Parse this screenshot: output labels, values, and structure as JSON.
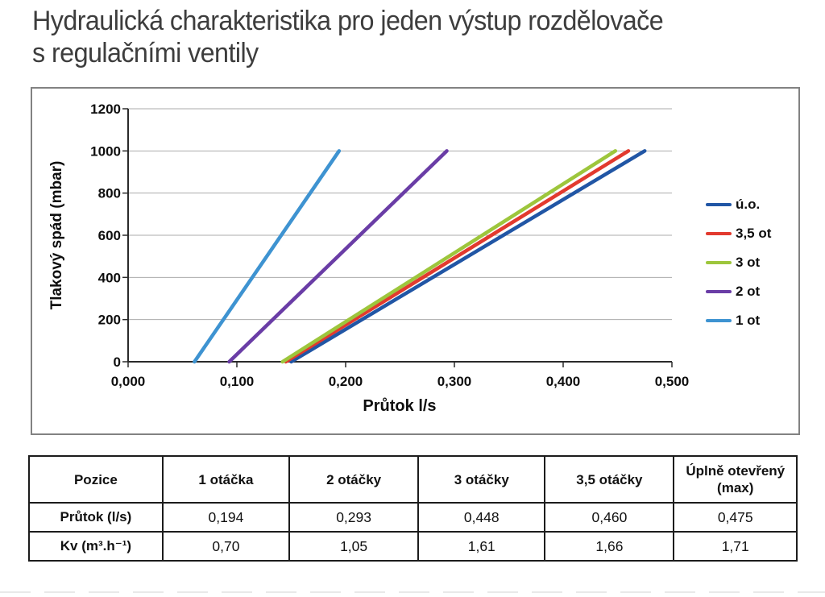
{
  "title": {
    "line1": "Hydraulická charakteristika pro jeden výstup rozdělovače",
    "line2": "s regulačními ventily"
  },
  "chart_data": {
    "type": "line",
    "title": "",
    "xlabel": "Průtok l/s",
    "ylabel": "Tlakový spád (mbar)",
    "xlim": [
      0,
      0.5
    ],
    "ylim": [
      0,
      1200
    ],
    "x_ticks": [
      0,
      0.1,
      0.2,
      0.3,
      0.4,
      0.5
    ],
    "x_tick_labels": [
      "0,000",
      "0,100",
      "0,200",
      "0,300",
      "0,400",
      "0,500"
    ],
    "y_ticks": [
      0,
      200,
      400,
      600,
      800,
      1000,
      1200
    ],
    "y_tick_labels": [
      "0",
      "200",
      "400",
      "600",
      "800",
      "1000",
      "1200"
    ],
    "grid": true,
    "legend_position": "right",
    "series": [
      {
        "name": "ú.o.",
        "color": "#2156a5",
        "points": [
          [
            0.15,
            0
          ],
          [
            0.475,
            1000
          ]
        ]
      },
      {
        "name": "3,5 ot",
        "color": "#e23a2e",
        "points": [
          [
            0.145,
            0
          ],
          [
            0.46,
            1000
          ]
        ]
      },
      {
        "name": "3 ot",
        "color": "#9dc63c",
        "points": [
          [
            0.142,
            0
          ],
          [
            0.448,
            1000
          ]
        ]
      },
      {
        "name": "2 ot",
        "color": "#6a3da6",
        "points": [
          [
            0.093,
            0
          ],
          [
            0.293,
            1000
          ]
        ]
      },
      {
        "name": "1 ot",
        "color": "#3e93d1",
        "points": [
          [
            0.061,
            0
          ],
          [
            0.194,
            1000
          ]
        ]
      }
    ]
  },
  "table": {
    "columns": [
      "Pozice",
      "1 otáčka",
      "2 otáčky",
      "3 otáčky",
      "3,5 otáčky",
      "Úplně otevřený (max)"
    ],
    "rows": [
      {
        "label": "Průtok (l/s)",
        "values": [
          "0,194",
          "0,293",
          "0,448",
          "0,460",
          "0,475"
        ]
      },
      {
        "label": "Kv (m³.h⁻¹)",
        "values": [
          "0,70",
          "1,05",
          "1,61",
          "1,66",
          "1,71"
        ]
      }
    ]
  }
}
